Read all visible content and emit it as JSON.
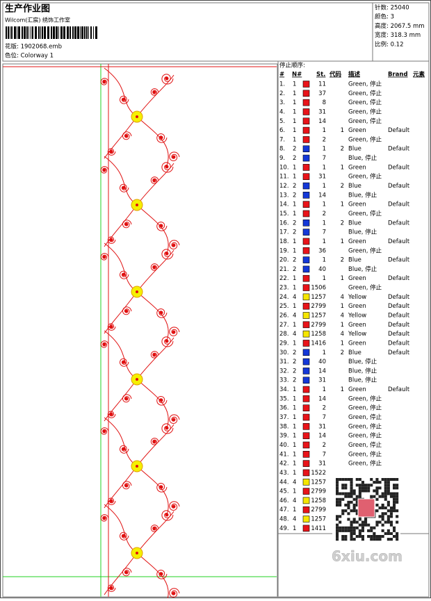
{
  "header": {
    "title": "生产作业图",
    "studio": "Wilcom(汇宸) 绣饰工作室",
    "design": "花版: 1902068.emb",
    "colorway": "色位: Colorway 1"
  },
  "info": [
    "针数: 25040",
    "颜色: 3",
    "高度: 2067.5 mm",
    "宽度: 318.3 mm",
    "比例: 0.12"
  ],
  "table": {
    "title": "停止顺序:",
    "columns": [
      "#",
      "N#",
      "St.",
      "代码",
      "描述",
      "Brand",
      "元素"
    ],
    "rows": [
      {
        "num": "1.",
        "n": "1",
        "color": "#e8141a",
        "st": "11",
        "desc": "Green, 停止"
      },
      {
        "num": "2.",
        "n": "1",
        "color": "#e8141a",
        "st": "37",
        "desc": "Green, 停止"
      },
      {
        "num": "3.",
        "n": "1",
        "color": "#e8141a",
        "st": "8",
        "desc": "Green, 停止"
      },
      {
        "num": "4.",
        "n": "1",
        "color": "#e8141a",
        "st": "31",
        "desc": "Green, 停止"
      },
      {
        "num": "5.",
        "n": "1",
        "color": "#e8141a",
        "st": "14",
        "desc": "Green, 停止"
      },
      {
        "num": "6.",
        "n": "1",
        "color": "#e8141a",
        "st": "1",
        "code": "1",
        "desc": "Green",
        "brand": "Default"
      },
      {
        "num": "7.",
        "n": "1",
        "color": "#e8141a",
        "st": "2",
        "desc": "Green, 停止"
      },
      {
        "num": "8.",
        "n": "2",
        "color": "#1438d8",
        "st": "1",
        "code": "2",
        "desc": "Blue",
        "brand": "Default"
      },
      {
        "num": "9.",
        "n": "2",
        "color": "#1438d8",
        "st": "7",
        "desc": "Blue, 停止"
      },
      {
        "num": "10.",
        "n": "1",
        "color": "#e8141a",
        "st": "1",
        "code": "1",
        "desc": "Green",
        "brand": "Default"
      },
      {
        "num": "11.",
        "n": "1",
        "color": "#e8141a",
        "st": "31",
        "desc": "Green, 停止"
      },
      {
        "num": "12.",
        "n": "2",
        "color": "#1438d8",
        "st": "1",
        "code": "2",
        "desc": "Blue",
        "brand": "Default"
      },
      {
        "num": "13.",
        "n": "2",
        "color": "#1438d8",
        "st": "14",
        "desc": "Blue, 停止"
      },
      {
        "num": "14.",
        "n": "1",
        "color": "#e8141a",
        "st": "1",
        "code": "1",
        "desc": "Green",
        "brand": "Default"
      },
      {
        "num": "15.",
        "n": "1",
        "color": "#e8141a",
        "st": "2",
        "desc": "Green, 停止"
      },
      {
        "num": "16.",
        "n": "2",
        "color": "#1438d8",
        "st": "1",
        "code": "2",
        "desc": "Blue",
        "brand": "Default"
      },
      {
        "num": "17.",
        "n": "2",
        "color": "#1438d8",
        "st": "7",
        "desc": "Blue, 停止"
      },
      {
        "num": "18.",
        "n": "1",
        "color": "#e8141a",
        "st": "1",
        "code": "1",
        "desc": "Green",
        "brand": "Default"
      },
      {
        "num": "19.",
        "n": "1",
        "color": "#e8141a",
        "st": "36",
        "desc": "Green, 停止"
      },
      {
        "num": "20.",
        "n": "2",
        "color": "#1438d8",
        "st": "1",
        "code": "2",
        "desc": "Blue",
        "brand": "Default"
      },
      {
        "num": "21.",
        "n": "2",
        "color": "#1438d8",
        "st": "40",
        "desc": "Blue, 停止"
      },
      {
        "num": "22.",
        "n": "1",
        "color": "#e8141a",
        "st": "1",
        "code": "1",
        "desc": "Green",
        "brand": "Default"
      },
      {
        "num": "23.",
        "n": "1",
        "color": "#e8141a",
        "st": "1506",
        "desc": "Green, 停止"
      },
      {
        "num": "24.",
        "n": "4",
        "color": "#f5e600",
        "st": "1257",
        "code": "4",
        "desc": "Yellow",
        "brand": "Default"
      },
      {
        "num": "25.",
        "n": "1",
        "color": "#e8141a",
        "st": "2799",
        "code": "1",
        "desc": "Green",
        "brand": "Default"
      },
      {
        "num": "26.",
        "n": "4",
        "color": "#f5e600",
        "st": "1257",
        "code": "4",
        "desc": "Yellow",
        "brand": "Default"
      },
      {
        "num": "27.",
        "n": "1",
        "color": "#e8141a",
        "st": "2799",
        "code": "1",
        "desc": "Green",
        "brand": "Default"
      },
      {
        "num": "28.",
        "n": "4",
        "color": "#f5e600",
        "st": "1258",
        "code": "4",
        "desc": "Yellow",
        "brand": "Default"
      },
      {
        "num": "29.",
        "n": "1",
        "color": "#e8141a",
        "st": "1416",
        "code": "1",
        "desc": "Green",
        "brand": "Default"
      },
      {
        "num": "30.",
        "n": "2",
        "color": "#1438d8",
        "st": "1",
        "code": "2",
        "desc": "Blue",
        "brand": "Default"
      },
      {
        "num": "31.",
        "n": "2",
        "color": "#1438d8",
        "st": "40",
        "desc": "Blue, 停止"
      },
      {
        "num": "32.",
        "n": "2",
        "color": "#1438d8",
        "st": "14",
        "desc": "Blue, 停止"
      },
      {
        "num": "33.",
        "n": "2",
        "color": "#1438d8",
        "st": "31",
        "desc": "Blue, 停止"
      },
      {
        "num": "34.",
        "n": "1",
        "color": "#e8141a",
        "st": "1",
        "code": "1",
        "desc": "Green",
        "brand": "Default"
      },
      {
        "num": "35.",
        "n": "1",
        "color": "#e8141a",
        "st": "14",
        "desc": "Green, 停止"
      },
      {
        "num": "36.",
        "n": "1",
        "color": "#e8141a",
        "st": "2",
        "desc": "Green, 停止"
      },
      {
        "num": "37.",
        "n": "1",
        "color": "#e8141a",
        "st": "7",
        "desc": "Green, 停止"
      },
      {
        "num": "38.",
        "n": "1",
        "color": "#e8141a",
        "st": "31",
        "desc": "Green, 停止"
      },
      {
        "num": "39.",
        "n": "1",
        "color": "#e8141a",
        "st": "14",
        "desc": "Green, 停止"
      },
      {
        "num": "40.",
        "n": "1",
        "color": "#e8141a",
        "st": "2",
        "desc": "Green, 停止"
      },
      {
        "num": "41.",
        "n": "1",
        "color": "#e8141a",
        "st": "7",
        "desc": "Green, 停止"
      },
      {
        "num": "42.",
        "n": "1",
        "color": "#e8141a",
        "st": "31",
        "desc": "Green, 停止"
      },
      {
        "num": "43.",
        "n": "1",
        "color": "#e8141a",
        "st": "1522"
      },
      {
        "num": "44.",
        "n": "4",
        "color": "#f5e600",
        "st": "1257"
      },
      {
        "num": "45.",
        "n": "1",
        "color": "#e8141a",
        "st": "2799"
      },
      {
        "num": "46.",
        "n": "4",
        "color": "#f5e600",
        "st": "1258"
      },
      {
        "num": "47.",
        "n": "1",
        "color": "#e8141a",
        "st": "2799"
      },
      {
        "num": "48.",
        "n": "4",
        "color": "#f5e600",
        "st": "1257"
      },
      {
        "num": "49.",
        "n": "1",
        "color": "#e8141a",
        "st": "1411"
      }
    ]
  },
  "watermark": "6xiu.com"
}
